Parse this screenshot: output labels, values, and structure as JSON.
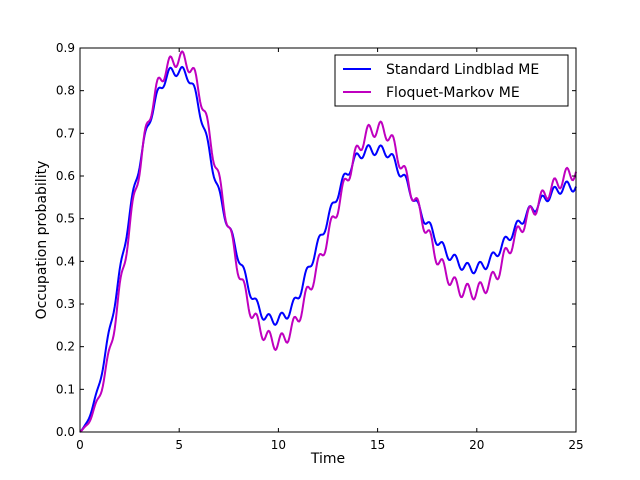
{
  "chart_data": {
    "type": "line",
    "xlabel": "Time",
    "ylabel": "Occupation probability",
    "xlim": [
      0,
      25
    ],
    "ylim": [
      0,
      0.9
    ],
    "xticks": [
      "0",
      "5",
      "10",
      "15",
      "20",
      "25"
    ],
    "yticks": [
      "0.0",
      "0.1",
      "0.2",
      "0.3",
      "0.4",
      "0.5",
      "0.6",
      "0.7",
      "0.8",
      "0.9"
    ],
    "grid": false,
    "legend_position": "top-right",
    "series": [
      {
        "name": "Standard Lindblad ME",
        "color": "#0000ff",
        "x": [
          0,
          0.5,
          1,
          1.5,
          2,
          2.5,
          3,
          3.5,
          4,
          4.5,
          5,
          5.5,
          6,
          6.5,
          7,
          7.5,
          8,
          8.5,
          9,
          9.5,
          10,
          10.5,
          11,
          11.5,
          12,
          12.5,
          13,
          13.5,
          14,
          14.5,
          15,
          15.5,
          16,
          16.5,
          17,
          17.5,
          18,
          18.5,
          19,
          19.5,
          20,
          20.5,
          21,
          21.5,
          22,
          22.5,
          23,
          23.5,
          24,
          24.5,
          25
        ],
        "y": [
          0,
          0.04,
          0.12,
          0.24,
          0.37,
          0.51,
          0.63,
          0.73,
          0.8,
          0.84,
          0.845,
          0.83,
          0.76,
          0.66,
          0.56,
          0.48,
          0.41,
          0.34,
          0.29,
          0.265,
          0.265,
          0.28,
          0.32,
          0.38,
          0.44,
          0.5,
          0.56,
          0.61,
          0.645,
          0.66,
          0.66,
          0.655,
          0.62,
          0.58,
          0.53,
          0.49,
          0.45,
          0.42,
          0.4,
          0.385,
          0.385,
          0.395,
          0.42,
          0.45,
          0.48,
          0.51,
          0.53,
          0.55,
          0.565,
          0.575,
          0.575
        ]
      },
      {
        "name": "Floquet-Markov ME",
        "color": "#bf00bf",
        "x": [
          0,
          0.5,
          1,
          1.5,
          2,
          2.5,
          3,
          3.5,
          4,
          4.5,
          5,
          5.5,
          6,
          6.5,
          7,
          7.5,
          8,
          8.5,
          9,
          9.5,
          10,
          10.5,
          11,
          11.5,
          12,
          12.5,
          13,
          13.5,
          14,
          14.5,
          15,
          15.5,
          16,
          16.5,
          17,
          17.5,
          18,
          18.5,
          19,
          19.5,
          20,
          20.5,
          21,
          21.5,
          22,
          22.5,
          23,
          23.5,
          24,
          24.5,
          25
        ],
        "y": [
          0,
          0.03,
          0.09,
          0.19,
          0.33,
          0.48,
          0.62,
          0.74,
          0.82,
          0.86,
          0.875,
          0.86,
          0.8,
          0.7,
          0.59,
          0.48,
          0.38,
          0.3,
          0.25,
          0.22,
          0.21,
          0.23,
          0.27,
          0.33,
          0.39,
          0.46,
          0.53,
          0.6,
          0.66,
          0.7,
          0.71,
          0.7,
          0.65,
          0.59,
          0.53,
          0.47,
          0.41,
          0.37,
          0.34,
          0.33,
          0.33,
          0.345,
          0.37,
          0.42,
          0.46,
          0.5,
          0.53,
          0.56,
          0.58,
          0.6,
          0.61
        ]
      }
    ]
  }
}
